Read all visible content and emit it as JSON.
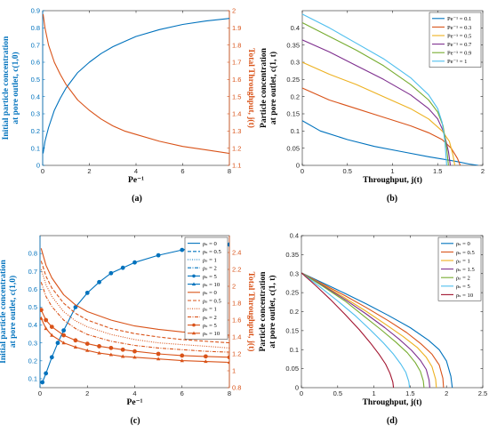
{
  "colors": {
    "blue": "#0072BD",
    "orange": "#D95319",
    "yellow": "#EDB120",
    "purple": "#7E2F8E",
    "green": "#77AC30",
    "cyan": "#4DBEEE",
    "maroon": "#A2142F",
    "axis": "#262626"
  },
  "chart_data": [
    {
      "id": "a",
      "type": "line",
      "caption": "(a)",
      "xlabel": "Pe⁻¹",
      "ylabel": [
        "Initial particle concentration",
        "at pore outlet, c(1,0)"
      ],
      "y2label": "Total Throughput, j(t)",
      "xlim": [
        0,
        8
      ],
      "ylim": [
        0,
        0.9
      ],
      "y2lim": [
        1.1,
        2
      ],
      "xticks": [
        "0",
        "2",
        "4",
        "6",
        "8"
      ],
      "yticks": [
        "0",
        "0.1",
        "0.2",
        "0.3",
        "0.4",
        "0.5",
        "0.6",
        "0.7",
        "0.8",
        "0.9"
      ],
      "y2ticks": [
        "1.1",
        "1.2",
        "1.3",
        "1.4",
        "1.5",
        "1.6",
        "1.7",
        "1.8",
        "1.9",
        "2"
      ],
      "series": [
        {
          "axis": "left",
          "color": "blue",
          "x": [
            0.02,
            0.1,
            0.25,
            0.5,
            0.75,
            1,
            1.5,
            2,
            2.5,
            3,
            3.5,
            4,
            5,
            6,
            7,
            8
          ],
          "y": [
            0.07,
            0.14,
            0.22,
            0.32,
            0.39,
            0.45,
            0.54,
            0.6,
            0.65,
            0.69,
            0.72,
            0.75,
            0.79,
            0.82,
            0.84,
            0.855
          ]
        },
        {
          "axis": "right",
          "color": "orange",
          "x": [
            0.02,
            0.1,
            0.25,
            0.5,
            0.75,
            1,
            1.5,
            2,
            2.5,
            3,
            3.5,
            4,
            5,
            6,
            7,
            8
          ],
          "y": [
            1.98,
            1.9,
            1.8,
            1.7,
            1.63,
            1.57,
            1.48,
            1.42,
            1.37,
            1.33,
            1.3,
            1.28,
            1.24,
            1.21,
            1.19,
            1.17
          ]
        }
      ]
    },
    {
      "id": "b",
      "type": "line",
      "caption": "(b)",
      "xlabel": "Throughput, j(t)",
      "ylabel": [
        "Particle concentration",
        "at pore outlet, c(1, t)"
      ],
      "xlim": [
        0,
        2
      ],
      "ylim": [
        0,
        0.45
      ],
      "xticks": [
        "0",
        "0.5",
        "1",
        "1.5",
        "2"
      ],
      "yticks": [
        "0",
        "0.05",
        "0.1",
        "0.15",
        "0.2",
        "0.25",
        "0.3",
        "0.35",
        "0.4"
      ],
      "legend_position": "top-right",
      "series": [
        {
          "name": "Pe⁻¹ = 0.1",
          "color": "blue",
          "x": [
            0,
            0.2,
            0.5,
            0.8,
            1.1,
            1.4,
            1.7,
            1.85,
            1.95
          ],
          "y": [
            0.13,
            0.1,
            0.075,
            0.055,
            0.04,
            0.025,
            0.012,
            0.004,
            0.0
          ]
        },
        {
          "name": "Pe⁻¹ = 0.3",
          "color": "orange",
          "x": [
            0,
            0.3,
            0.6,
            0.9,
            1.2,
            1.4,
            1.55,
            1.65,
            1.72,
            1.75
          ],
          "y": [
            0.225,
            0.19,
            0.165,
            0.14,
            0.115,
            0.095,
            0.075,
            0.05,
            0.02,
            0.0
          ]
        },
        {
          "name": "Pe⁻¹ = 0.5",
          "color": "yellow",
          "x": [
            0,
            0.3,
            0.6,
            0.9,
            1.2,
            1.4,
            1.55,
            1.63,
            1.67,
            1.69
          ],
          "y": [
            0.3,
            0.265,
            0.235,
            0.2,
            0.165,
            0.135,
            0.1,
            0.07,
            0.03,
            0.0
          ]
        },
        {
          "name": "Pe⁻¹ = 0.7",
          "color": "purple",
          "x": [
            0,
            0.3,
            0.6,
            0.9,
            1.2,
            1.4,
            1.5,
            1.57,
            1.62,
            1.64
          ],
          "y": [
            0.365,
            0.33,
            0.29,
            0.25,
            0.205,
            0.165,
            0.135,
            0.095,
            0.04,
            0.0
          ]
        },
        {
          "name": "Pe⁻¹ = 0.9",
          "color": "green",
          "x": [
            0,
            0.3,
            0.6,
            0.9,
            1.2,
            1.4,
            1.5,
            1.56,
            1.6,
            1.62
          ],
          "y": [
            0.415,
            0.375,
            0.335,
            0.29,
            0.235,
            0.19,
            0.155,
            0.115,
            0.05,
            0.0
          ]
        },
        {
          "name": "Pe⁻¹ = 1",
          "color": "cyan",
          "x": [
            0,
            0.3,
            0.6,
            0.9,
            1.2,
            1.4,
            1.5,
            1.55,
            1.58,
            1.6
          ],
          "y": [
            0.44,
            0.4,
            0.355,
            0.31,
            0.255,
            0.205,
            0.165,
            0.125,
            0.07,
            0.0
          ]
        }
      ]
    },
    {
      "id": "c",
      "type": "line",
      "caption": "(c)",
      "xlabel": "Pe⁻¹",
      "ylabel": [
        "Initial particle concentration",
        "at pore outlet, c(1,0)"
      ],
      "y2label": "Total Throughput, j(t)",
      "xlim": [
        0,
        8
      ],
      "ylim": [
        0.05,
        0.9
      ],
      "y2lim": [
        0.8,
        2.6
      ],
      "xticks": [
        "0",
        "2",
        "4",
        "6",
        "8"
      ],
      "yticks": [
        "0.1",
        "0.2",
        "0.3",
        "0.4",
        "0.5",
        "0.6",
        "0.7",
        "0.8"
      ],
      "y2ticks": [
        "0.8",
        "1",
        "1.2",
        "1.4",
        "1.6",
        "1.8",
        "2",
        "2.2",
        "2.4"
      ],
      "legend_position": "top-right",
      "series": [
        {
          "name": "ρₛ = 0",
          "color": "blue",
          "dash": "",
          "marker": "",
          "axis": "left",
          "x": [],
          "y": []
        },
        {
          "name": "ρₛ = 0.5",
          "color": "blue",
          "dash": "4,2",
          "marker": "",
          "axis": "left",
          "x": [],
          "y": []
        },
        {
          "name": "ρₛ = 1",
          "color": "blue",
          "dash": "1,1.5",
          "marker": "",
          "axis": "left",
          "x": [],
          "y": []
        },
        {
          "name": "ρₛ = 2",
          "color": "blue",
          "dash": "4,1.5,1,1.5",
          "marker": "",
          "axis": "left",
          "x": [],
          "y": []
        },
        {
          "name": "ρₛ = 5",
          "color": "blue",
          "dash": "",
          "marker": "circle",
          "axis": "left",
          "x": [
            0.1,
            0.25,
            0.5,
            0.75,
            1,
            1.5,
            2,
            2.5,
            3,
            3.5,
            4,
            5,
            6,
            8
          ],
          "y": [
            0.08,
            0.13,
            0.22,
            0.3,
            0.37,
            0.5,
            0.58,
            0.64,
            0.69,
            0.72,
            0.75,
            0.79,
            0.82,
            0.85
          ]
        },
        {
          "name": "ρₛ = 10",
          "color": "blue",
          "dash": "",
          "marker": "triangle",
          "axis": "left",
          "x": [],
          "y": []
        },
        {
          "name": "ρₛ = 0",
          "color": "orange",
          "dash": "",
          "marker": "",
          "axis": "right",
          "x": [
            0.05,
            0.25,
            0.5,
            1,
            1.5,
            2,
            3,
            4,
            5,
            6,
            7,
            8
          ],
          "y": [
            2.45,
            2.25,
            2.1,
            1.9,
            1.78,
            1.7,
            1.6,
            1.53,
            1.49,
            1.46,
            1.44,
            1.42
          ]
        },
        {
          "name": "ρₛ = 0.5",
          "color": "orange",
          "dash": "4,2",
          "marker": "",
          "axis": "right",
          "x": [
            0.05,
            0.25,
            0.5,
            1,
            1.5,
            2,
            3,
            4,
            5,
            6,
            7,
            8
          ],
          "y": [
            2.3,
            2.12,
            1.98,
            1.8,
            1.68,
            1.6,
            1.5,
            1.44,
            1.4,
            1.37,
            1.35,
            1.33
          ]
        },
        {
          "name": "ρₛ = 1",
          "color": "orange",
          "dash": "1,1.5",
          "marker": "",
          "axis": "right",
          "x": [
            0.05,
            0.25,
            0.5,
            1,
            1.5,
            2,
            3,
            4,
            5,
            6,
            7,
            8
          ],
          "y": [
            2.2,
            2.02,
            1.88,
            1.7,
            1.59,
            1.52,
            1.43,
            1.37,
            1.33,
            1.31,
            1.29,
            1.27
          ]
        },
        {
          "name": "ρₛ = 2",
          "color": "orange",
          "dash": "4,1.5,1,1.5",
          "marker": "",
          "axis": "right",
          "x": [
            0.05,
            0.25,
            0.5,
            1,
            1.5,
            2,
            3,
            4,
            5,
            6,
            7,
            8
          ],
          "y": [
            2.05,
            1.88,
            1.76,
            1.6,
            1.5,
            1.43,
            1.35,
            1.3,
            1.27,
            1.25,
            1.23,
            1.22
          ]
        },
        {
          "name": "ρₛ = 5",
          "color": "orange",
          "dash": "",
          "marker": "circle",
          "axis": "right",
          "x": [
            0.05,
            0.25,
            0.5,
            1,
            1.5,
            2,
            2.5,
            3,
            3.5,
            4,
            5,
            6,
            7,
            8
          ],
          "y": [
            1.72,
            1.6,
            1.52,
            1.42,
            1.36,
            1.32,
            1.29,
            1.27,
            1.25,
            1.23,
            1.2,
            1.18,
            1.17,
            1.16
          ]
        },
        {
          "name": "ρₛ = 10",
          "color": "orange",
          "dash": "",
          "marker": "triangle",
          "axis": "right",
          "x": [
            0.05,
            0.25,
            0.5,
            1,
            1.5,
            2,
            2.5,
            3,
            3.5,
            4,
            5,
            6,
            7,
            8
          ],
          "y": [
            1.62,
            1.5,
            1.42,
            1.33,
            1.28,
            1.24,
            1.21,
            1.19,
            1.17,
            1.16,
            1.14,
            1.12,
            1.11,
            1.1
          ]
        }
      ]
    },
    {
      "id": "d",
      "type": "line",
      "caption": "(d)",
      "xlabel": "Throughput, j(t)",
      "ylabel": [
        "Particle concentration",
        "at pore outlet, c(1, t)"
      ],
      "xlim": [
        0,
        2.5
      ],
      "ylim": [
        0,
        0.4
      ],
      "xticks": [
        "0",
        "0.5",
        "1",
        "1.5",
        "2",
        "2.5"
      ],
      "yticks": [
        "0",
        "0.05",
        "0.1",
        "0.15",
        "0.2",
        "0.25",
        "0.3",
        "0.35",
        "0.4"
      ],
      "legend_position": "top-right",
      "series": [
        {
          "name": "ρₛ = 0",
          "color": "blue",
          "x": [
            0,
            0.3,
            0.6,
            0.9,
            1.2,
            1.5,
            1.75,
            1.9,
            2.0,
            2.06,
            2.08
          ],
          "y": [
            0.302,
            0.275,
            0.248,
            0.22,
            0.19,
            0.158,
            0.125,
            0.1,
            0.07,
            0.03,
            0.0
          ]
        },
        {
          "name": "ρₛ = 0.5",
          "color": "orange",
          "x": [
            0,
            0.3,
            0.6,
            0.9,
            1.2,
            1.45,
            1.65,
            1.8,
            1.9,
            1.95,
            1.96
          ],
          "y": [
            0.302,
            0.272,
            0.242,
            0.21,
            0.176,
            0.145,
            0.115,
            0.088,
            0.06,
            0.025,
            0.0
          ]
        },
        {
          "name": "ρₛ = 1",
          "color": "yellow",
          "x": [
            0,
            0.3,
            0.6,
            0.9,
            1.15,
            1.4,
            1.6,
            1.72,
            1.8,
            1.85,
            1.86
          ],
          "y": [
            0.302,
            0.27,
            0.236,
            0.2,
            0.168,
            0.135,
            0.105,
            0.08,
            0.055,
            0.022,
            0.0
          ]
        },
        {
          "name": "ρₛ = 1.5",
          "color": "purple",
          "x": [
            0,
            0.3,
            0.6,
            0.9,
            1.15,
            1.35,
            1.52,
            1.64,
            1.72,
            1.76,
            1.77
          ],
          "y": [
            0.302,
            0.268,
            0.232,
            0.193,
            0.158,
            0.127,
            0.098,
            0.072,
            0.048,
            0.02,
            0.0
          ]
        },
        {
          "name": "ρₛ = 2",
          "color": "green",
          "x": [
            0,
            0.3,
            0.6,
            0.85,
            1.1,
            1.3,
            1.46,
            1.57,
            1.64,
            1.68,
            1.69
          ],
          "y": [
            0.302,
            0.266,
            0.228,
            0.19,
            0.152,
            0.12,
            0.092,
            0.066,
            0.043,
            0.018,
            0.0
          ]
        },
        {
          "name": "ρₛ = 5",
          "color": "cyan",
          "x": [
            0,
            0.25,
            0.5,
            0.75,
            0.95,
            1.13,
            1.27,
            1.37,
            1.44,
            1.48,
            1.49
          ],
          "y": [
            0.302,
            0.266,
            0.228,
            0.188,
            0.152,
            0.118,
            0.088,
            0.062,
            0.04,
            0.016,
            0.0
          ]
        },
        {
          "name": "ρₛ = 10",
          "color": "maroon",
          "x": [
            0,
            0.2,
            0.4,
            0.6,
            0.8,
            0.95,
            1.07,
            1.16,
            1.22,
            1.26,
            1.27
          ],
          "y": [
            0.302,
            0.268,
            0.232,
            0.193,
            0.152,
            0.118,
            0.088,
            0.062,
            0.038,
            0.015,
            0.0
          ]
        }
      ]
    }
  ]
}
